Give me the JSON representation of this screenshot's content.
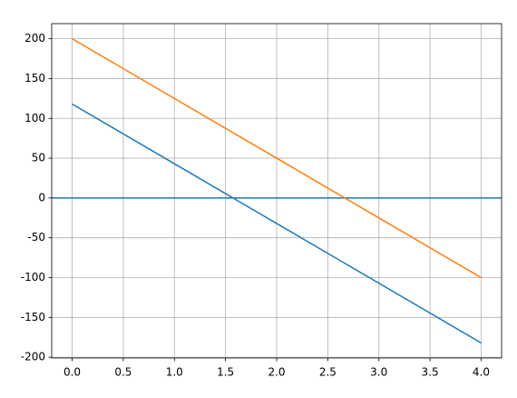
{
  "chart_data": {
    "type": "line",
    "x": [
      0,
      1,
      2,
      3,
      4
    ],
    "series": [
      {
        "color": "#1f77b4",
        "values": [
          118,
          43,
          -32,
          -107,
          -182
        ]
      },
      {
        "color": "#ff7f0e",
        "values": [
          200,
          125,
          50,
          -25,
          -100
        ]
      }
    ],
    "hlines": [
      {
        "y": 0,
        "color": "#1f77b4"
      }
    ],
    "xlim": [
      -0.2,
      4.2
    ],
    "ylim": [
      -201,
      219
    ],
    "xticks": [
      {
        "value": 0,
        "label": "0.0"
      },
      {
        "value": 0.5,
        "label": "0.5"
      },
      {
        "value": 1,
        "label": "1.0"
      },
      {
        "value": 1.5,
        "label": "1.5"
      },
      {
        "value": 2,
        "label": "2.0"
      },
      {
        "value": 2.5,
        "label": "2.5"
      },
      {
        "value": 3,
        "label": "3.0"
      },
      {
        "value": 3.5,
        "label": "3.5"
      },
      {
        "value": 4,
        "label": "4.0"
      }
    ],
    "yticks": [
      -200,
      -150,
      -100,
      -50,
      0,
      50,
      100,
      150,
      200
    ],
    "grid": true
  }
}
